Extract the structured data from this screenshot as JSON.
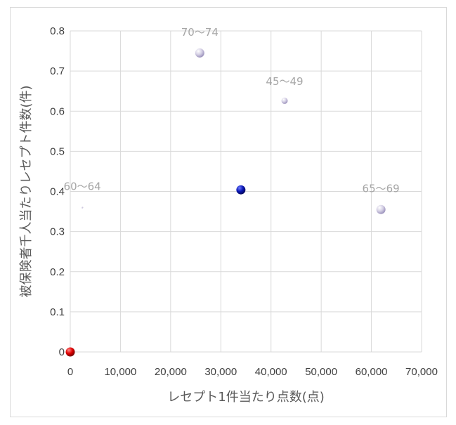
{
  "chart_data": {
    "type": "scatter",
    "title": "",
    "xlabel": "レセプト1件当たり点数(点)",
    "ylabel": "被保険者千人当たりレセプト件数(件)",
    "xlim": [
      0,
      70000
    ],
    "ylim": [
      0,
      0.8
    ],
    "x_ticks": [
      "0",
      "10,000",
      "20,000",
      "30,000",
      "40,000",
      "50,000",
      "60,000",
      "70,000"
    ],
    "y_ticks": [
      "0",
      "0.1",
      "0.2",
      "0.3",
      "0.4",
      "0.5",
      "0.6",
      "0.7",
      "0.8"
    ],
    "grid": true,
    "points": [
      {
        "label": "70〜74",
        "x": 25800,
        "y": 0.745,
        "size": "medium",
        "color": "#c9c3dc"
      },
      {
        "label": "45〜49",
        "x": 42700,
        "y": 0.626,
        "size": "small",
        "color": "#c9c3dc"
      },
      {
        "label": "60〜64",
        "x": 2400,
        "y": 0.36,
        "size": "tiny",
        "color": "#c9c3dc"
      },
      {
        "label": "65〜69",
        "x": 61900,
        "y": 0.355,
        "size": "medium",
        "color": "#c9c3dc"
      },
      {
        "label": "",
        "x": 34000,
        "y": 0.404,
        "size": "medium",
        "color": "#0a0fa6"
      },
      {
        "label": "",
        "x": 0,
        "y": 0,
        "size": "medium",
        "color": "#e00000"
      }
    ]
  }
}
